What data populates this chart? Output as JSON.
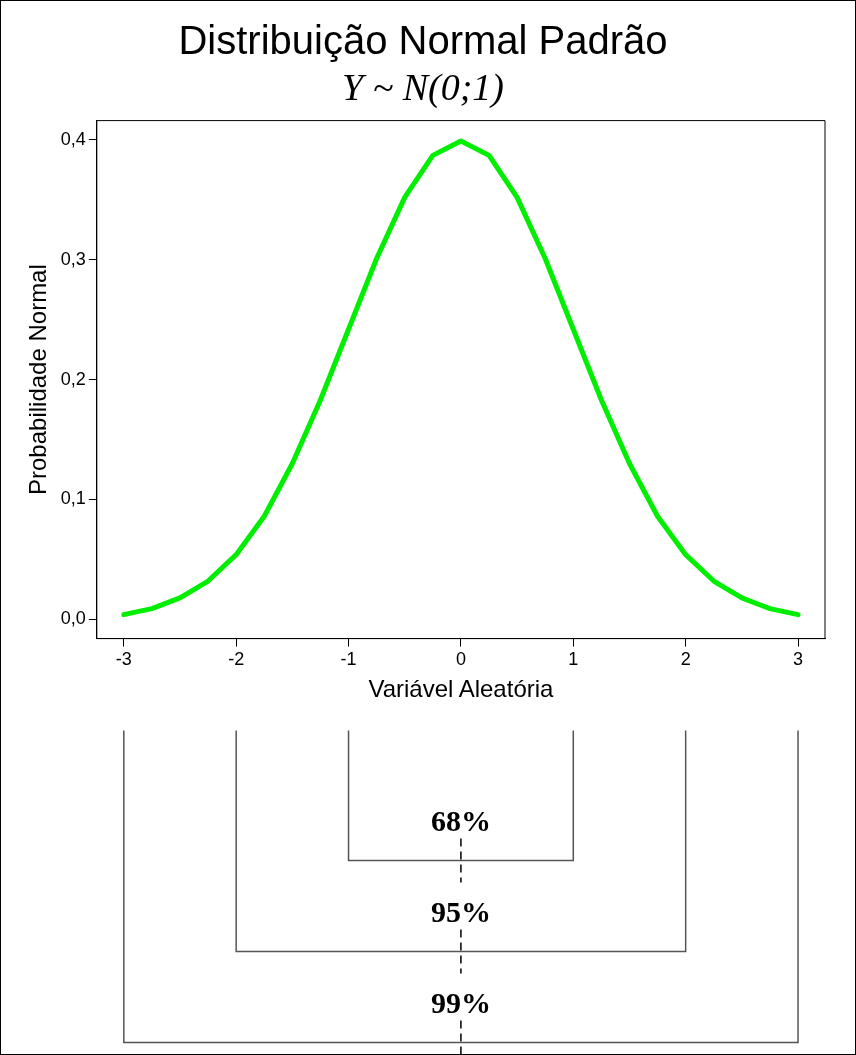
{
  "chart_data": {
    "type": "line",
    "title": "Distribuição Normal Padrão",
    "subtitle": "Y ~ N(0;1)",
    "xlabel": "Variável Aleatória",
    "ylabel": "Probabilidade Normal",
    "x": [
      -3,
      -2.75,
      -2.5,
      -2.25,
      -2,
      -1.75,
      -1.5,
      -1.25,
      -1,
      -0.75,
      -0.5,
      -0.25,
      0,
      0.25,
      0.5,
      0.75,
      1,
      1.25,
      1.5,
      1.75,
      2,
      2.25,
      2.5,
      2.75,
      3
    ],
    "series": [
      {
        "color": "#00ee00",
        "values": [
          0.004,
          0.009,
          0.018,
          0.032,
          0.054,
          0.086,
          0.13,
          0.183,
          0.242,
          0.301,
          0.352,
          0.387,
          0.399,
          0.387,
          0.352,
          0.301,
          0.242,
          0.183,
          0.13,
          0.086,
          0.054,
          0.032,
          0.018,
          0.009,
          0.004
        ]
      }
    ],
    "xlim": [
      -3.24,
      3.24
    ],
    "ylim": [
      -0.016,
      0.416
    ],
    "xticks": [
      -3,
      -2,
      -1,
      0,
      1,
      2,
      3
    ],
    "yticks": [
      {
        "value": 0,
        "label": "0,0"
      },
      {
        "value": 0.1,
        "label": "0,1"
      },
      {
        "value": 0.2,
        "label": "0,2"
      },
      {
        "value": 0.3,
        "label": "0,3"
      },
      {
        "value": 0.4,
        "label": "0,4"
      }
    ],
    "annotations": [
      "68%",
      "95%",
      "99%"
    ],
    "grid": false,
    "legend": false,
    "marker": "none",
    "line_style": "solid"
  }
}
